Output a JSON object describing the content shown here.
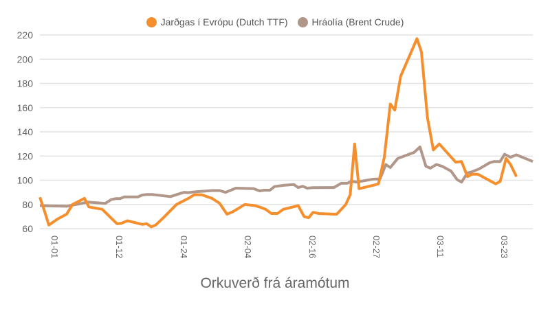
{
  "chart_data": {
    "type": "line",
    "title": "Orkuverð frá áramótum",
    "xlabel": "",
    "ylabel": "",
    "ylim": [
      60,
      220
    ],
    "y_ticks": [
      60,
      80,
      100,
      120,
      140,
      160,
      180,
      200,
      220
    ],
    "x_tick_labels": [
      "01-01",
      "01-12",
      "01-24",
      "02-04",
      "02-16",
      "02-27",
      "03-11",
      "03-23"
    ],
    "grid": true,
    "legend_position": "top",
    "series": [
      {
        "name": "Jarðgas í Evrópu (Dutch TTF)",
        "color": "#f58f2e",
        "points": [
          [
            0,
            86
          ],
          [
            1.5,
            75
          ],
          [
            3,
            63
          ],
          [
            6,
            68
          ],
          [
            9,
            72
          ],
          [
            11,
            80
          ],
          [
            15,
            85
          ],
          [
            16.5,
            78
          ],
          [
            21,
            76
          ],
          [
            23.5,
            70
          ],
          [
            26,
            64
          ],
          [
            27.5,
            64.5
          ],
          [
            29.5,
            66.5
          ],
          [
            34.5,
            63.5
          ],
          [
            36,
            64
          ],
          [
            37.5,
            61.5
          ],
          [
            39,
            63
          ],
          [
            42,
            70
          ],
          [
            46,
            80
          ],
          [
            50,
            85
          ],
          [
            52,
            88
          ],
          [
            54.5,
            88
          ],
          [
            58,
            85
          ],
          [
            60.5,
            81
          ],
          [
            63,
            72
          ],
          [
            65,
            74
          ],
          [
            69,
            80
          ],
          [
            72.5,
            79
          ],
          [
            74.5,
            77.5
          ],
          [
            76,
            76
          ],
          [
            78,
            72.5
          ],
          [
            80,
            72.5
          ],
          [
            82,
            76
          ],
          [
            87,
            79
          ],
          [
            89,
            70
          ],
          [
            90.5,
            69
          ],
          [
            92,
            73.5
          ],
          [
            94,
            72.5
          ],
          [
            99,
            72
          ],
          [
            100,
            72
          ],
          [
            103,
            80
          ],
          [
            104.5,
            88
          ],
          [
            106,
            130
          ],
          [
            107.5,
            93
          ],
          [
            112.5,
            96
          ],
          [
            114,
            97
          ],
          [
            116,
            119
          ],
          [
            118,
            163
          ],
          [
            119.5,
            158
          ],
          [
            121.5,
            186
          ],
          [
            127,
            217
          ],
          [
            128.5,
            206
          ],
          [
            130.5,
            152
          ],
          [
            132.5,
            125
          ],
          [
            134.5,
            130
          ],
          [
            140,
            115
          ],
          [
            142,
            115.5
          ],
          [
            144,
            103
          ],
          [
            145.5,
            105
          ],
          [
            147.5,
            105
          ],
          [
            153.5,
            97
          ],
          [
            155,
            99
          ],
          [
            157,
            118
          ],
          [
            158.5,
            113
          ],
          [
            160.5,
            103
          ]
        ]
      },
      {
        "name": "Hráolía (Brent Crude)",
        "color": "#b0978a",
        "points": [
          [
            0,
            79
          ],
          [
            4,
            78.8
          ],
          [
            9,
            78.5
          ],
          [
            14,
            80.8
          ],
          [
            16,
            82
          ],
          [
            22,
            80.8
          ],
          [
            24,
            84
          ],
          [
            25.5,
            84.8
          ],
          [
            27,
            84.8
          ],
          [
            28.5,
            86.2
          ],
          [
            33,
            86.2
          ],
          [
            34.5,
            87.8
          ],
          [
            36,
            88.2
          ],
          [
            38,
            88.2
          ],
          [
            44,
            86.5
          ],
          [
            46.5,
            88.5
          ],
          [
            48.5,
            90
          ],
          [
            50,
            89.8
          ],
          [
            52.5,
            90.5
          ],
          [
            58,
            91.5
          ],
          [
            60.5,
            91.5
          ],
          [
            62.5,
            90
          ],
          [
            66,
            93.5
          ],
          [
            72,
            93
          ],
          [
            74,
            91.2
          ],
          [
            75.5,
            91.8
          ],
          [
            77.5,
            91.8
          ],
          [
            79,
            94.8
          ],
          [
            82,
            95.8
          ],
          [
            85.5,
            96.5
          ],
          [
            87,
            94
          ],
          [
            88.5,
            95
          ],
          [
            90,
            93.5
          ],
          [
            92,
            93.9
          ],
          [
            98,
            94
          ],
          [
            99,
            94
          ],
          [
            101.5,
            97.5
          ],
          [
            103.5,
            97.5
          ],
          [
            105,
            99.2
          ],
          [
            106.5,
            98.5
          ],
          [
            109,
            99.5
          ],
          [
            112.5,
            101
          ],
          [
            114.5,
            101
          ],
          [
            116.5,
            113
          ],
          [
            118,
            110.5
          ],
          [
            120.5,
            118
          ],
          [
            126,
            123
          ],
          [
            128,
            127.5
          ],
          [
            130,
            111.5
          ],
          [
            131.5,
            110
          ],
          [
            133.5,
            113
          ],
          [
            135.5,
            111.5
          ],
          [
            138.5,
            107.5
          ],
          [
            140.5,
            100.5
          ],
          [
            142,
            98.5
          ],
          [
            144,
            106
          ],
          [
            145.5,
            107
          ],
          [
            148,
            109.5
          ],
          [
            151.5,
            114.5
          ],
          [
            153,
            115.5
          ],
          [
            155,
            115.5
          ],
          [
            156.5,
            121.5
          ],
          [
            158.5,
            119
          ],
          [
            160.5,
            121
          ],
          [
            166,
            115.5
          ]
        ]
      }
    ]
  },
  "legend": {
    "items": [
      {
        "label": "Jarðgas í Evrópu (Dutch TTF)",
        "color": "#f58f2e"
      },
      {
        "label": "Hráolía (Brent Crude)",
        "color": "#b0978a"
      }
    ]
  },
  "title": "Orkuverð frá áramótum"
}
